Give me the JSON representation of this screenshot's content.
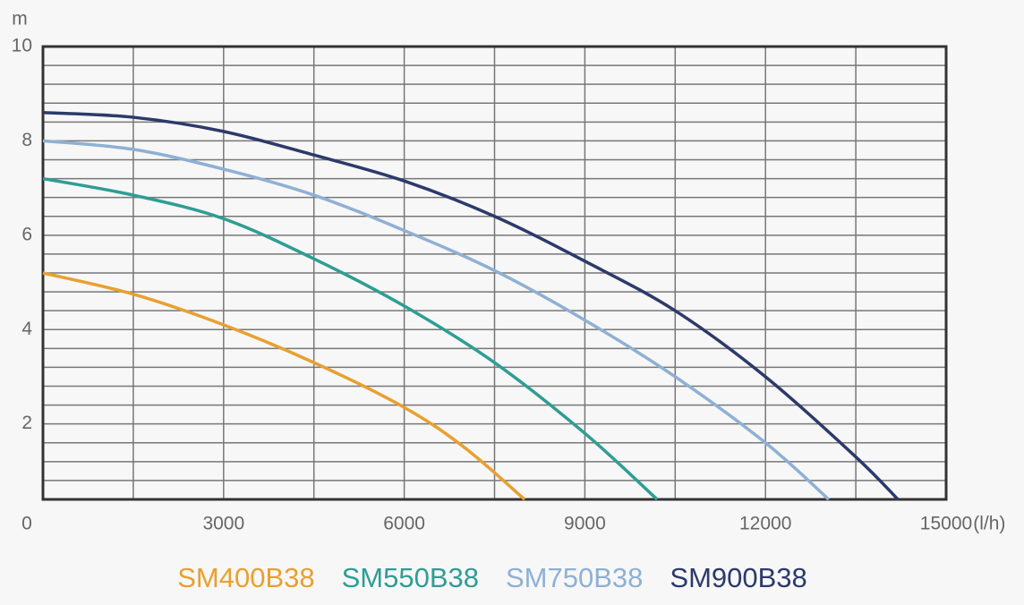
{
  "chart_data": {
    "type": "line",
    "x_label": "(l/h)",
    "y_label": "m",
    "xlim": [
      0,
      15000
    ],
    "ylim": [
      0.4,
      10
    ],
    "xticks": [
      0,
      3000,
      6000,
      9000,
      12000,
      15000
    ],
    "yticks": [
      2,
      4,
      6,
      8,
      10
    ],
    "xgrid": [
      1500,
      3000,
      4500,
      6000,
      7500,
      9000,
      10500,
      12000,
      13500
    ],
    "ygrid": [
      0.8,
      1.2,
      1.6,
      2.0,
      2.4,
      2.8,
      3.2,
      3.6,
      4.0,
      4.4,
      4.8,
      5.2,
      5.6,
      6.0,
      6.4,
      6.8,
      7.2,
      7.6,
      8.0,
      8.4,
      8.8,
      9.2,
      9.6
    ],
    "grid": true,
    "series": [
      {
        "name": "SM400B38",
        "color": "#e8a030",
        "x": [
          0,
          1500,
          3000,
          4500,
          6000,
          7000,
          8000
        ],
        "values": [
          5.2,
          4.75,
          4.1,
          3.3,
          2.35,
          1.5,
          0.4
        ]
      },
      {
        "name": "SM550B38",
        "color": "#2e9e94",
        "x": [
          0,
          1500,
          3000,
          4500,
          6000,
          7500,
          9000,
          10200
        ],
        "values": [
          7.2,
          6.85,
          6.35,
          5.5,
          4.5,
          3.3,
          1.8,
          0.4
        ]
      },
      {
        "name": "SM750B38",
        "color": "#8fb0d4",
        "x": [
          0,
          1500,
          3000,
          4500,
          6000,
          7500,
          9000,
          10500,
          12000,
          13050
        ],
        "values": [
          8.0,
          7.82,
          7.4,
          6.85,
          6.1,
          5.25,
          4.2,
          3.0,
          1.6,
          0.4
        ]
      },
      {
        "name": "SM900B38",
        "color": "#2c3a6b",
        "x": [
          0,
          1500,
          3000,
          4500,
          6000,
          7500,
          9000,
          10500,
          12000,
          13500,
          14200
        ],
        "values": [
          8.6,
          8.5,
          8.2,
          7.7,
          7.15,
          6.4,
          5.45,
          4.4,
          3.0,
          1.3,
          0.4
        ]
      }
    ]
  }
}
